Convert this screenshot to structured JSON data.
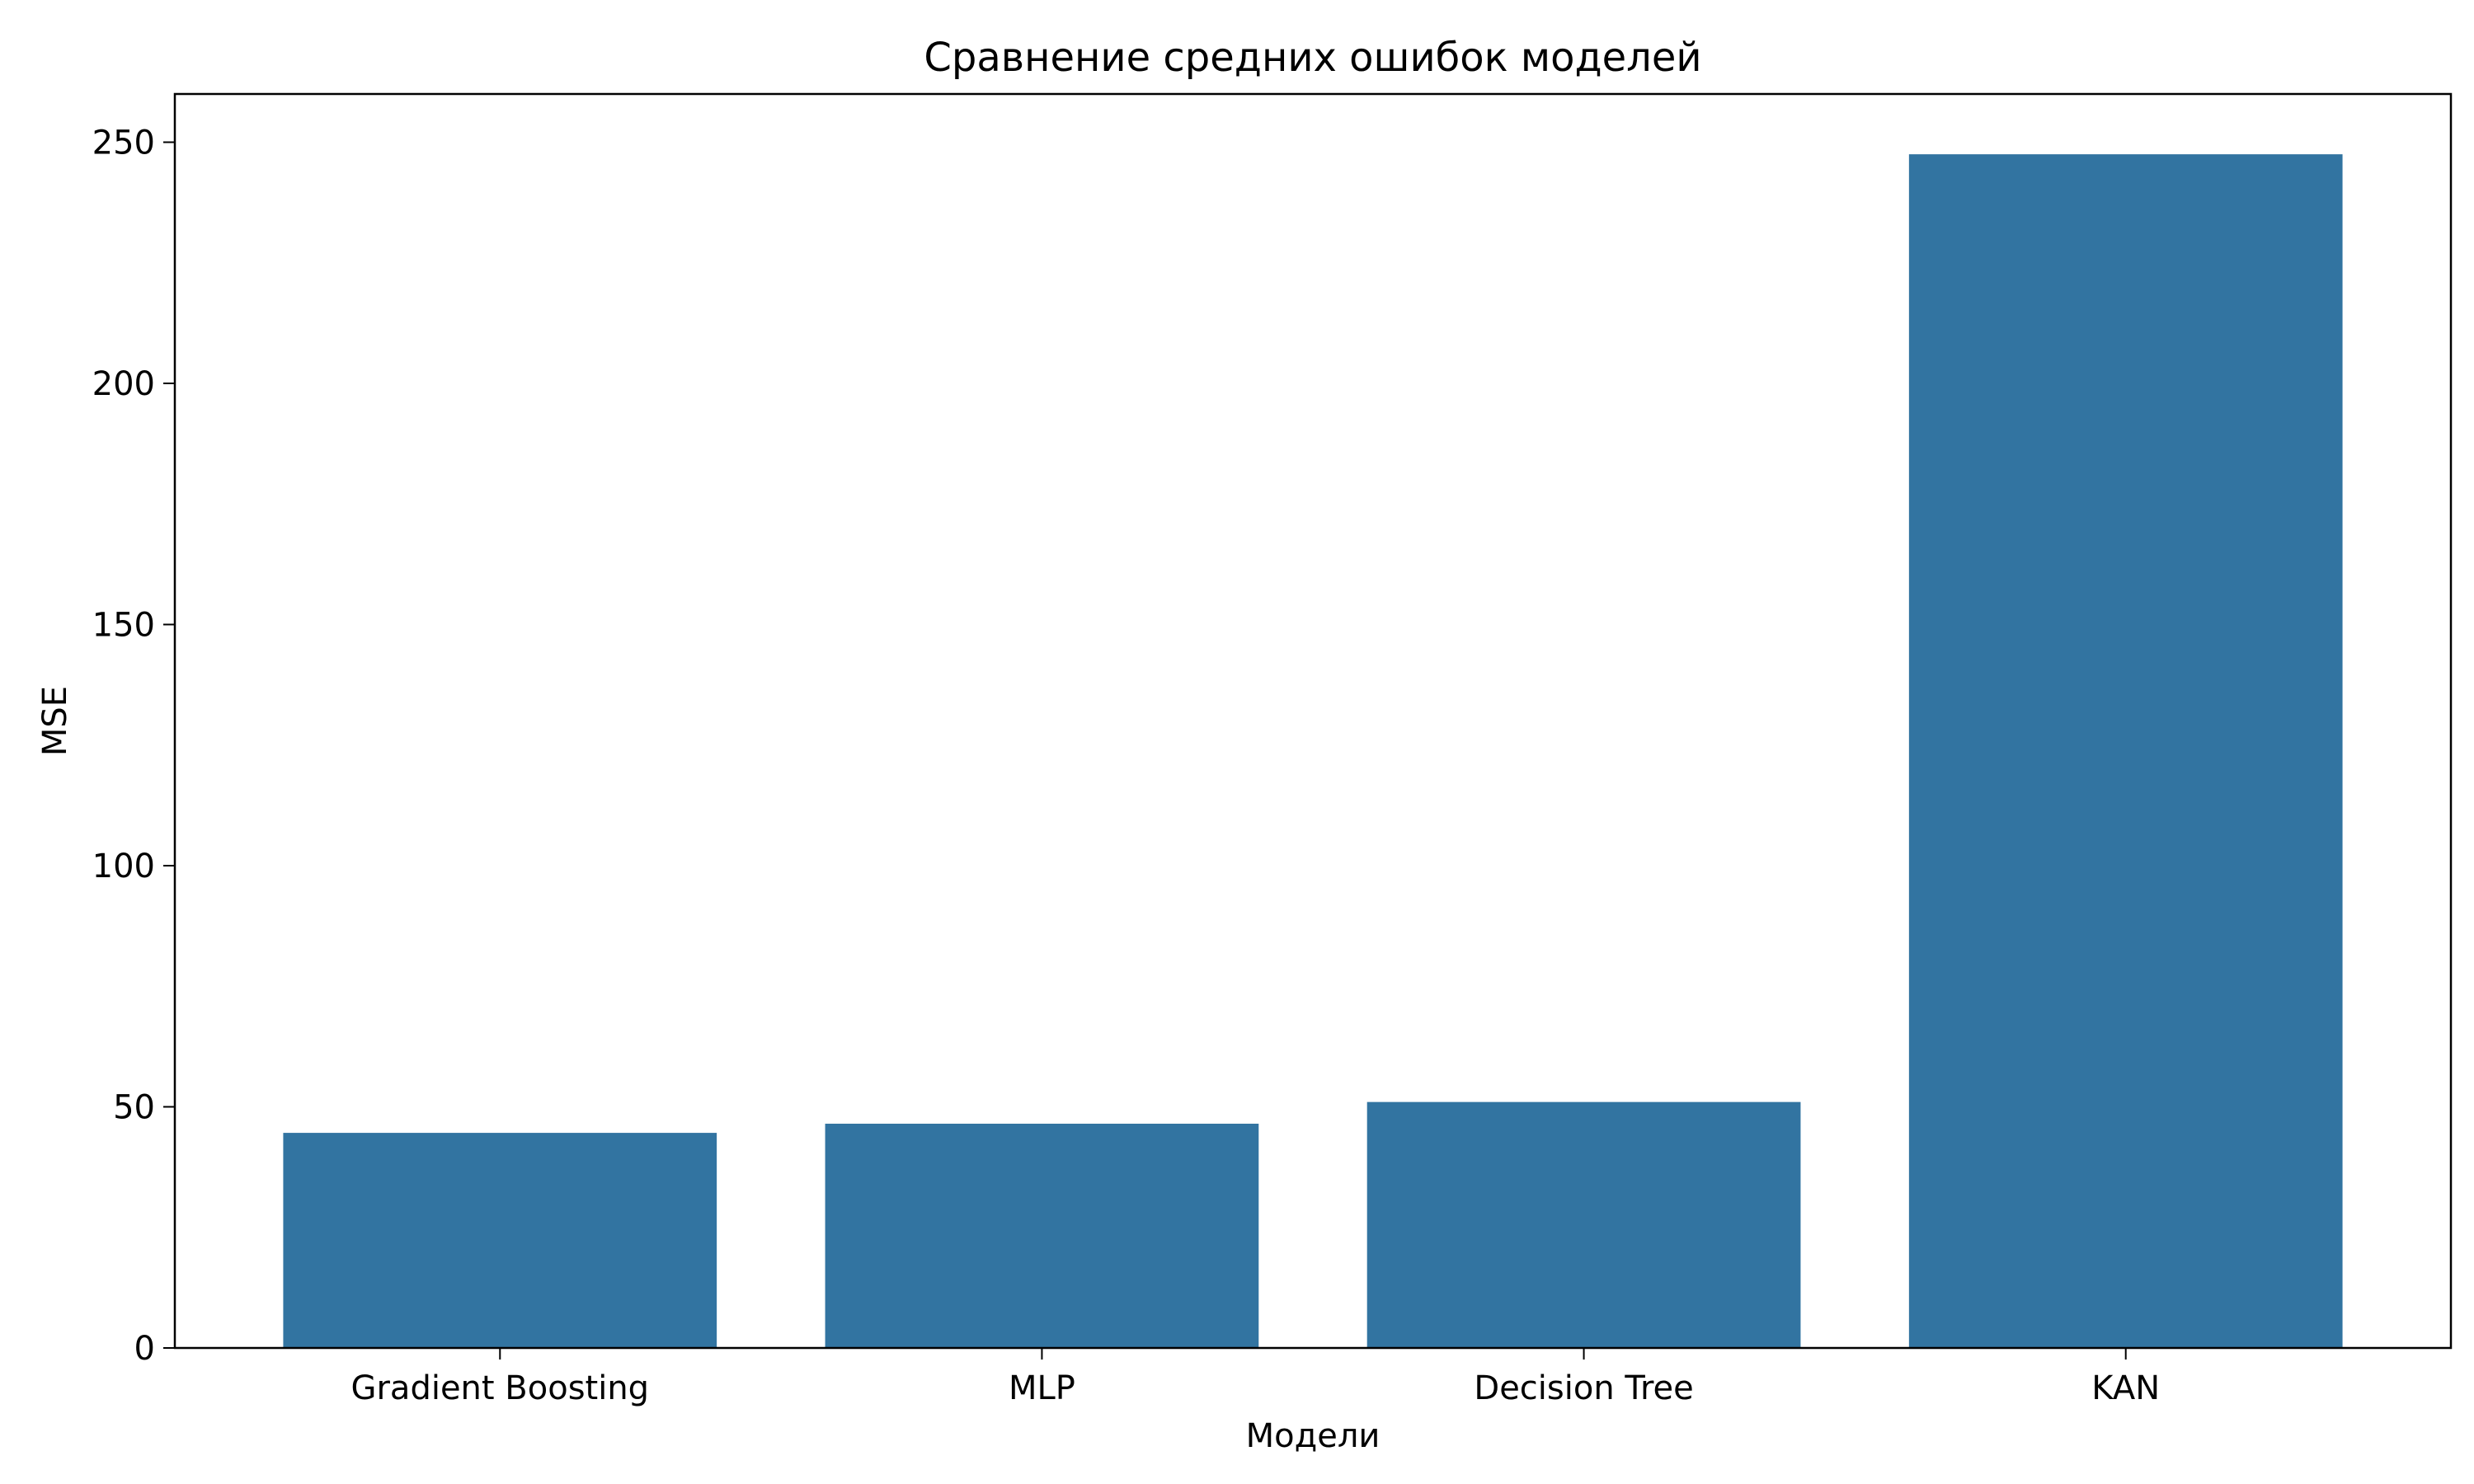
{
  "chart_data": {
    "type": "bar",
    "title": "Сравнение средних ошибок моделей",
    "xlabel": "Модели",
    "ylabel": "MSE",
    "categories": [
      "Gradient Boosting",
      "MLP",
      "Decision Tree",
      "KAN"
    ],
    "values": [
      44.6,
      46.5,
      51.0,
      247.5
    ],
    "ylim": [
      0,
      260
    ],
    "yticks": [
      0,
      50,
      100,
      150,
      200,
      250
    ],
    "grid": false,
    "legend": "none",
    "colors": {
      "bar": "#3274a1",
      "axis": "#000000",
      "background": "#ffffff"
    }
  }
}
